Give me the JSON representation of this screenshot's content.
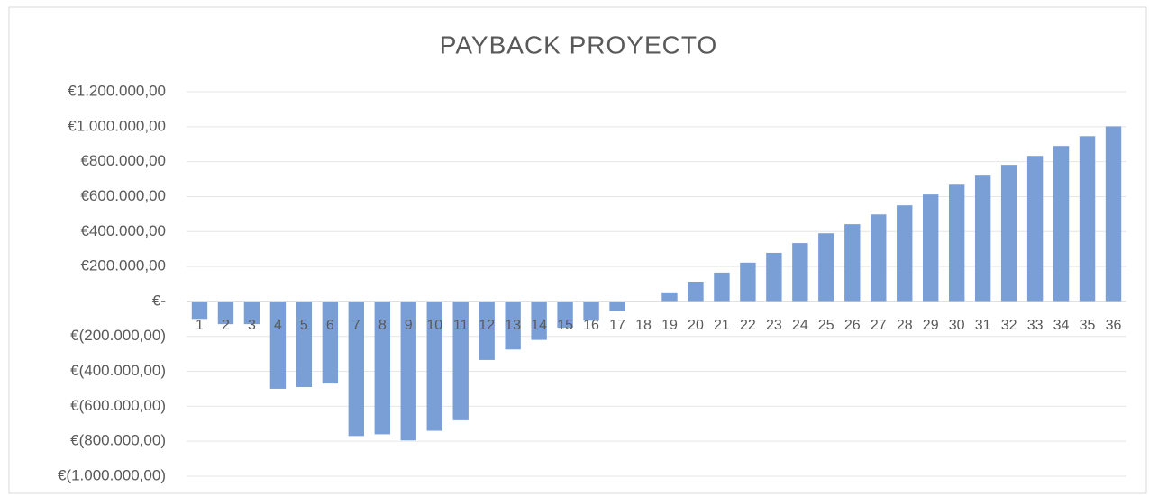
{
  "chart_data": {
    "type": "bar",
    "title": "PAYBACK PROYECTO",
    "categories": [
      "1",
      "2",
      "3",
      "4",
      "5",
      "6",
      "7",
      "8",
      "9",
      "10",
      "11",
      "12",
      "13",
      "14",
      "15",
      "16",
      "17",
      "18",
      "19",
      "20",
      "21",
      "22",
      "23",
      "24",
      "25",
      "26",
      "27",
      "28",
      "29",
      "30",
      "31",
      "32",
      "33",
      "34",
      "35",
      "36"
    ],
    "values": [
      -100000,
      -130000,
      -130000,
      -500000,
      -490000,
      -470000,
      -770000,
      -760000,
      -795000,
      -740000,
      -680000,
      -335000,
      -275000,
      -220000,
      -150000,
      -110000,
      -55000,
      0,
      52000,
      113000,
      165000,
      222000,
      278000,
      334000,
      390000,
      442000,
      498000,
      550000,
      612000,
      668000,
      720000,
      782000,
      833000,
      890000,
      946000,
      1002000
    ],
    "color": "#7a9fd6",
    "ylim": [
      -1000000,
      1200000
    ],
    "yticks": [
      {
        "value": -1000000,
        "label": "€(1.000.000,00)"
      },
      {
        "value": -800000,
        "label": "€(800.000,00)"
      },
      {
        "value": -600000,
        "label": "€(600.000,00)"
      },
      {
        "value": -400000,
        "label": "€(400.000,00)"
      },
      {
        "value": -200000,
        "label": "€(200.000,00)"
      },
      {
        "value": 0,
        "label": "€-"
      },
      {
        "value": 200000,
        "label": "€200.000,00"
      },
      {
        "value": 400000,
        "label": "€400.000,00"
      },
      {
        "value": 600000,
        "label": "€600.000,00"
      },
      {
        "value": 800000,
        "label": "€800.000,00"
      },
      {
        "value": 1000000,
        "label": "€1.000.000,00"
      },
      {
        "value": 1200000,
        "label": "€1.200.000,00"
      }
    ],
    "grid": true
  }
}
